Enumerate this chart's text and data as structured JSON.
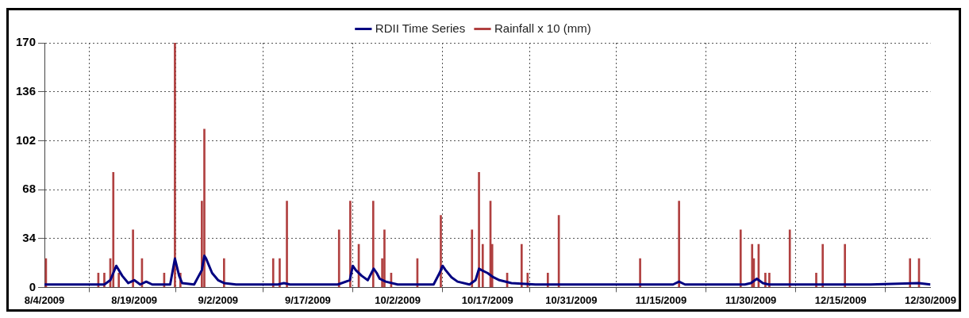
{
  "chart_data": {
    "type": "line",
    "xlim": [
      "2009-08-04",
      "2009-12-30"
    ],
    "xticks": [
      {
        "value": "2009-08-04",
        "label": "8/4/2009"
      },
      {
        "value": "2009-08-19",
        "label": "8/19/2009"
      },
      {
        "value": "2009-09-02",
        "label": "9/2/2009"
      },
      {
        "value": "2009-09-17",
        "label": "9/17/2009"
      },
      {
        "value": "2009-10-02",
        "label": "10/2/2009"
      },
      {
        "value": "2009-10-17",
        "label": "10/17/2009"
      },
      {
        "value": "2009-10-31",
        "label": "10/31/2009"
      },
      {
        "value": "2009-11-15",
        "label": "11/15/2009"
      },
      {
        "value": "2009-11-30",
        "label": "11/30/2009"
      },
      {
        "value": "2009-12-15",
        "label": "12/15/2009"
      },
      {
        "value": "2009-12-30",
        "label": "12/30/2009"
      }
    ],
    "ylim": [
      0,
      170
    ],
    "yticks": [
      0,
      34,
      68,
      102,
      136,
      170
    ],
    "grid": true,
    "legend": "top",
    "marker": "none",
    "line_style": "solid",
    "series": [
      {
        "name": "RDII Time Series",
        "color": "#000080",
        "x": [
          "2009-08-04",
          "2009-08-04T12:00",
          "2009-08-14",
          "2009-08-15",
          "2009-08-15T12:00",
          "2009-08-16",
          "2009-08-17",
          "2009-08-18",
          "2009-08-19",
          "2009-08-20",
          "2009-08-21",
          "2009-08-22",
          "2009-08-25",
          "2009-08-25T19:00",
          "2009-08-26T12:00",
          "2009-08-27",
          "2009-08-29",
          "2009-08-30T07:00",
          "2009-08-30T17:00",
          "2009-08-31",
          "2009-09-01",
          "2009-09-02",
          "2009-09-03",
          "2009-09-05",
          "2009-09-12",
          "2009-09-13",
          "2009-09-14",
          "2009-09-22",
          "2009-09-24",
          "2009-09-24T12:00",
          "2009-09-25",
          "2009-09-26",
          "2009-09-27",
          "2009-09-28",
          "2009-09-28T12:00",
          "2009-09-29",
          "2009-09-30",
          "2009-10-02",
          "2009-10-08",
          "2009-10-09",
          "2009-10-09T12:00",
          "2009-10-10",
          "2009-10-11",
          "2009-10-12",
          "2009-10-14",
          "2009-10-15",
          "2009-10-15T14:00",
          "2009-10-16",
          "2009-10-17",
          "2009-10-18",
          "2009-10-19",
          "2009-10-21",
          "2009-10-25",
          "2009-10-29",
          "2009-11-05",
          "2009-11-17",
          "2009-11-18",
          "2009-11-19",
          "2009-11-29",
          "2009-11-30",
          "2009-12-01",
          "2009-12-02",
          "2009-12-03",
          "2009-12-20",
          "2009-12-28",
          "2009-12-30"
        ],
        "values": [
          2,
          2,
          2,
          5,
          10,
          15,
          8,
          3,
          5,
          2,
          4,
          2,
          2,
          20,
          8,
          3,
          2,
          12,
          22,
          20,
          10,
          5,
          3,
          2,
          2,
          3,
          2,
          2,
          5,
          15,
          12,
          8,
          5,
          13,
          10,
          6,
          4,
          2,
          2,
          10,
          15,
          12,
          7,
          4,
          2,
          5,
          13,
          12,
          10,
          7,
          5,
          3,
          2,
          2,
          2,
          2,
          4,
          2,
          2,
          3,
          6,
          3,
          2,
          2,
          3,
          2
        ]
      },
      {
        "name": "Rainfall x 10 (mm)",
        "type": "bar",
        "color": "#b04040",
        "x": [
          "2009-08-04T06:00",
          "2009-08-13",
          "2009-08-14",
          "2009-08-15",
          "2009-08-15T12:00",
          "2009-08-16T10:00",
          "2009-08-18T19:00",
          "2009-08-20T07:00",
          "2009-08-24",
          "2009-08-25T19:00",
          "2009-08-26T17:00",
          "2009-08-30T07:00",
          "2009-08-30T17:00",
          "2009-09-03",
          "2009-09-11T05:00",
          "2009-09-12T07:00",
          "2009-09-13T12:00",
          "2009-09-22T05:00",
          "2009-09-24T02:00",
          "2009-09-25T12:00",
          "2009-09-27T22:00",
          "2009-09-29T10:00",
          "2009-09-29T19:00",
          "2009-09-30T22:00",
          "2009-10-05T07:00",
          "2009-10-09T05:00",
          "2009-10-14T10:00",
          "2009-10-15T14:00",
          "2009-10-16T05:00",
          "2009-10-17T12:00",
          "2009-10-17T19:00",
          "2009-10-20T07:00",
          "2009-10-22T17:00",
          "2009-10-23T17:00",
          "2009-10-27T02:00",
          "2009-10-28T22:00",
          "2009-11-11T12:00",
          "2009-11-18",
          "2009-11-28T07:00",
          "2009-11-30T05:00",
          "2009-11-30T12:00",
          "2009-12-01T07:00",
          "2009-12-02T10:00",
          "2009-12-03T02:00",
          "2009-12-06T12:00",
          "2009-12-10T22:00",
          "2009-12-12",
          "2009-12-15T17:00",
          "2009-12-26T14:00",
          "2009-12-28T02:00"
        ],
        "values": [
          20,
          10,
          10,
          20,
          80,
          10,
          40,
          20,
          10,
          170,
          10,
          60,
          110,
          20,
          20,
          20,
          60,
          40,
          60,
          30,
          60,
          20,
          40,
          10,
          20,
          50,
          40,
          80,
          30,
          60,
          30,
          10,
          30,
          10,
          10,
          50,
          20,
          60,
          40,
          30,
          20,
          30,
          10,
          10,
          40,
          10,
          30,
          30,
          20,
          20
        ]
      }
    ]
  }
}
